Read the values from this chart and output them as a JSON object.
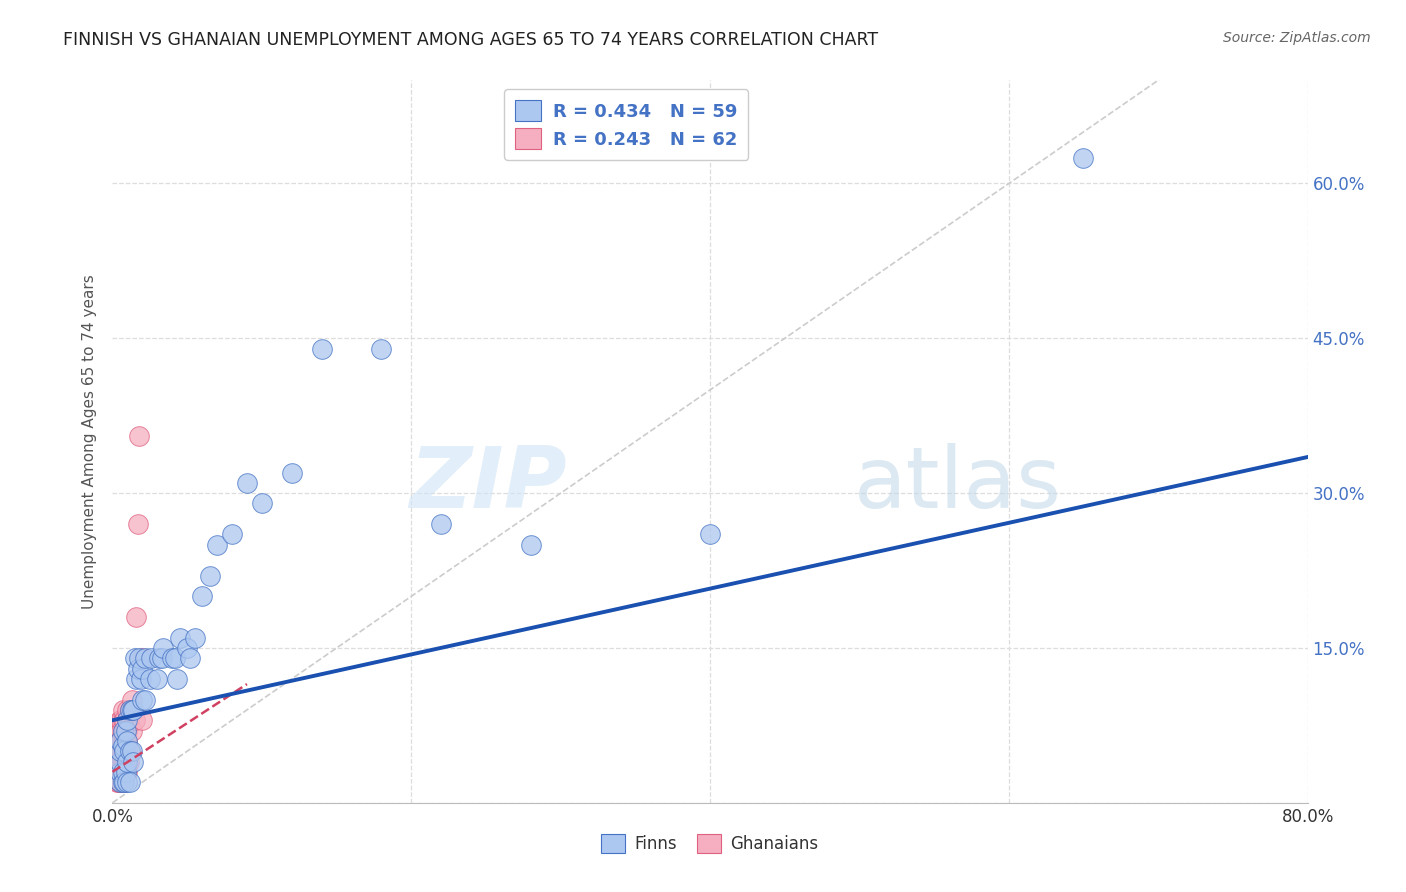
{
  "title": "FINNISH VS GHANAIAN UNEMPLOYMENT AMONG AGES 65 TO 74 YEARS CORRELATION CHART",
  "source": "Source: ZipAtlas.com",
  "ylabel": "Unemployment Among Ages 65 to 74 years",
  "xlim": [
    0.0,
    0.8
  ],
  "ylim": [
    0.0,
    0.7
  ],
  "yticks": [
    0.0,
    0.15,
    0.3,
    0.45,
    0.6
  ],
  "ytick_labels": [
    "",
    "15.0%",
    "30.0%",
    "45.0%",
    "60.0%"
  ],
  "legend_r_blue": "0.434",
  "legend_n_blue": "59",
  "legend_r_pink": "0.243",
  "legend_n_pink": "62",
  "watermark_zip": "ZIP",
  "watermark_atlas": "atlas",
  "blue_fill": "#adc8f0",
  "pink_fill": "#f5afc0",
  "blue_edge": "#4472c4",
  "pink_edge": "#e06080",
  "blue_line": "#1a50b0",
  "pink_line": "#d04060",
  "gray_diag": "#cccccc",
  "text_blue": "#4472c4",
  "text_dark": "#333333",
  "background": "#ffffff",
  "grid_color": "#dddddd",
  "blue_trend_x0": 0.0,
  "blue_trend_y0": 0.08,
  "blue_trend_x1": 0.8,
  "blue_trend_y1": 0.335,
  "pink_trend_x0": 0.0,
  "pink_trend_y0": 0.03,
  "pink_trend_x1": 0.09,
  "pink_trend_y1": 0.115,
  "finns_x": [
    0.005,
    0.005,
    0.005,
    0.005,
    0.005,
    0.007,
    0.007,
    0.007,
    0.007,
    0.008,
    0.008,
    0.009,
    0.009,
    0.01,
    0.01,
    0.01,
    0.01,
    0.012,
    0.012,
    0.012,
    0.013,
    0.013,
    0.014,
    0.014,
    0.015,
    0.016,
    0.017,
    0.018,
    0.019,
    0.02,
    0.02,
    0.022,
    0.022,
    0.025,
    0.026,
    0.03,
    0.031,
    0.033,
    0.034,
    0.04,
    0.042,
    0.043,
    0.045,
    0.05,
    0.052,
    0.055,
    0.06,
    0.065,
    0.07,
    0.08,
    0.09,
    0.1,
    0.12,
    0.14,
    0.18,
    0.22,
    0.28,
    0.4,
    0.65
  ],
  "finns_y": [
    0.02,
    0.03,
    0.04,
    0.05,
    0.06,
    0.02,
    0.03,
    0.055,
    0.07,
    0.02,
    0.05,
    0.03,
    0.07,
    0.02,
    0.04,
    0.06,
    0.08,
    0.02,
    0.05,
    0.09,
    0.05,
    0.09,
    0.04,
    0.09,
    0.14,
    0.12,
    0.13,
    0.14,
    0.12,
    0.1,
    0.13,
    0.1,
    0.14,
    0.12,
    0.14,
    0.12,
    0.14,
    0.14,
    0.15,
    0.14,
    0.14,
    0.12,
    0.16,
    0.15,
    0.14,
    0.16,
    0.2,
    0.22,
    0.25,
    0.26,
    0.31,
    0.29,
    0.32,
    0.44,
    0.44,
    0.27,
    0.25,
    0.26,
    0.625
  ],
  "ghanaians_x": [
    0.003,
    0.003,
    0.003,
    0.004,
    0.004,
    0.004,
    0.004,
    0.004,
    0.005,
    0.005,
    0.005,
    0.005,
    0.005,
    0.005,
    0.005,
    0.005,
    0.006,
    0.006,
    0.006,
    0.006,
    0.006,
    0.006,
    0.006,
    0.007,
    0.007,
    0.007,
    0.007,
    0.007,
    0.007,
    0.007,
    0.007,
    0.008,
    0.008,
    0.008,
    0.008,
    0.008,
    0.008,
    0.008,
    0.009,
    0.009,
    0.009,
    0.009,
    0.009,
    0.01,
    0.01,
    0.01,
    0.01,
    0.01,
    0.01,
    0.01,
    0.011,
    0.011,
    0.012,
    0.012,
    0.013,
    0.013,
    0.015,
    0.016,
    0.017,
    0.018,
    0.02,
    0.02
  ],
  "ghanaians_y": [
    0.02,
    0.03,
    0.04,
    0.02,
    0.03,
    0.04,
    0.05,
    0.06,
    0.02,
    0.02,
    0.03,
    0.04,
    0.05,
    0.06,
    0.07,
    0.08,
    0.02,
    0.03,
    0.04,
    0.05,
    0.06,
    0.07,
    0.08,
    0.02,
    0.03,
    0.04,
    0.05,
    0.06,
    0.07,
    0.08,
    0.09,
    0.02,
    0.03,
    0.04,
    0.05,
    0.06,
    0.07,
    0.08,
    0.03,
    0.04,
    0.05,
    0.06,
    0.07,
    0.03,
    0.04,
    0.05,
    0.06,
    0.07,
    0.08,
    0.09,
    0.04,
    0.08,
    0.05,
    0.09,
    0.07,
    0.1,
    0.08,
    0.18,
    0.27,
    0.355,
    0.08,
    0.14
  ]
}
